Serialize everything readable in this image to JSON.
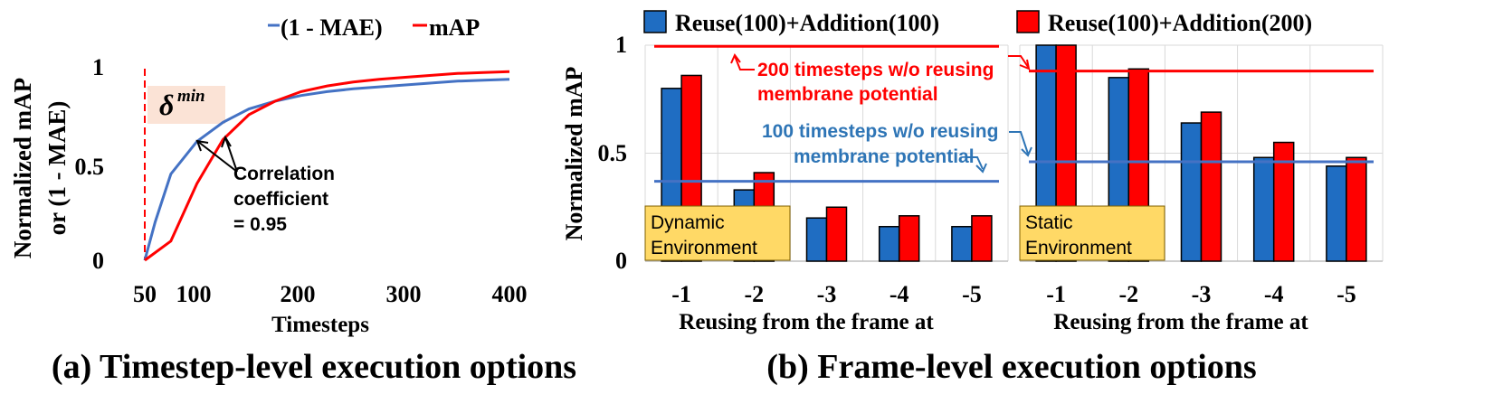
{
  "chart_data": [
    {
      "type": "line",
      "caption": "(a) Timestep-level execution options",
      "xlabel": "Timesteps",
      "ylabel": [
        "Normalized mAP",
        "or (1 - MAE)"
      ],
      "xticks": [
        "50",
        "100",
        "200",
        "300",
        "400"
      ],
      "yticks": [
        "0",
        "0.5",
        "1"
      ],
      "xlim": [
        50,
        400
      ],
      "ylim": [
        0,
        1
      ],
      "grid": false,
      "legend_position": "top",
      "series": [
        {
          "name": "(1 - MAE)",
          "color": "#4472C4",
          "x": [
            50,
            60,
            75,
            100,
            125,
            150,
            175,
            200,
            225,
            250,
            275,
            300,
            325,
            350,
            375,
            400
          ],
          "y": [
            0.0,
            0.2,
            0.45,
            0.62,
            0.72,
            0.79,
            0.83,
            0.86,
            0.88,
            0.895,
            0.905,
            0.915,
            0.925,
            0.935,
            0.94,
            0.945
          ]
        },
        {
          "name": "mAP",
          "color": "#FF0000",
          "x": [
            50,
            75,
            100,
            125,
            150,
            175,
            200,
            225,
            250,
            275,
            300,
            325,
            350,
            375,
            400
          ],
          "y": [
            0.0,
            0.1,
            0.4,
            0.63,
            0.76,
            0.83,
            0.88,
            0.91,
            0.93,
            0.945,
            0.955,
            0.965,
            0.975,
            0.98,
            0.985
          ]
        }
      ],
      "annotations": {
        "delta_base": "δ",
        "delta_sup": "min",
        "delta_x": 50,
        "correlation": [
          "Correlation",
          "coefficient",
          "= 0.95"
        ]
      }
    },
    {
      "type": "bar",
      "caption": "(b) Frame-level execution options",
      "ylabel": "Normalized mAP",
      "yticks": [
        "0",
        "0.5",
        "1"
      ],
      "ylim": [
        0,
        1
      ],
      "legend_position": "top",
      "series_names": [
        "Reuse(100)+Addition(100)",
        "Reuse(100)+Addition(200)"
      ],
      "series_colors": [
        "#1F6DC2",
        "#FF0000"
      ],
      "panels": [
        {
          "label": [
            "Dynamic",
            "Environment"
          ],
          "xlabel": "Reusing from the frame at",
          "categories": [
            "-1",
            "-2",
            "-3",
            "-4",
            "-5"
          ],
          "series": [
            {
              "name": "Reuse(100)+Addition(100)",
              "values": [
                0.8,
                0.33,
                0.2,
                0.16,
                0.16
              ]
            },
            {
              "name": "Reuse(100)+Addition(200)",
              "values": [
                0.86,
                0.41,
                0.25,
                0.21,
                0.21
              ]
            }
          ],
          "ref_lines": [
            {
              "value": 0.995,
              "color": "#FF0000"
            },
            {
              "value": 0.37,
              "color": "#4472C4"
            }
          ]
        },
        {
          "label": [
            "Static",
            "Environment"
          ],
          "xlabel": "Reusing from the frame at",
          "categories": [
            "-1",
            "-2",
            "-3",
            "-4",
            "-5"
          ],
          "series": [
            {
              "name": "Reuse(100)+Addition(100)",
              "values": [
                1.0,
                0.85,
                0.64,
                0.48,
                0.44
              ]
            },
            {
              "name": "Reuse(100)+Addition(200)",
              "values": [
                1.0,
                0.89,
                0.69,
                0.55,
                0.48
              ]
            }
          ],
          "ref_lines": [
            {
              "value": 0.88,
              "color": "#FF0000"
            },
            {
              "value": 0.46,
              "color": "#4472C4"
            }
          ]
        }
      ],
      "annotations": {
        "red_text": [
          "200 timesteps w/o reusing",
          "membrane potential"
        ],
        "blue_text": [
          "100 timesteps w/o reusing",
          "membrane potential"
        ]
      }
    }
  ]
}
